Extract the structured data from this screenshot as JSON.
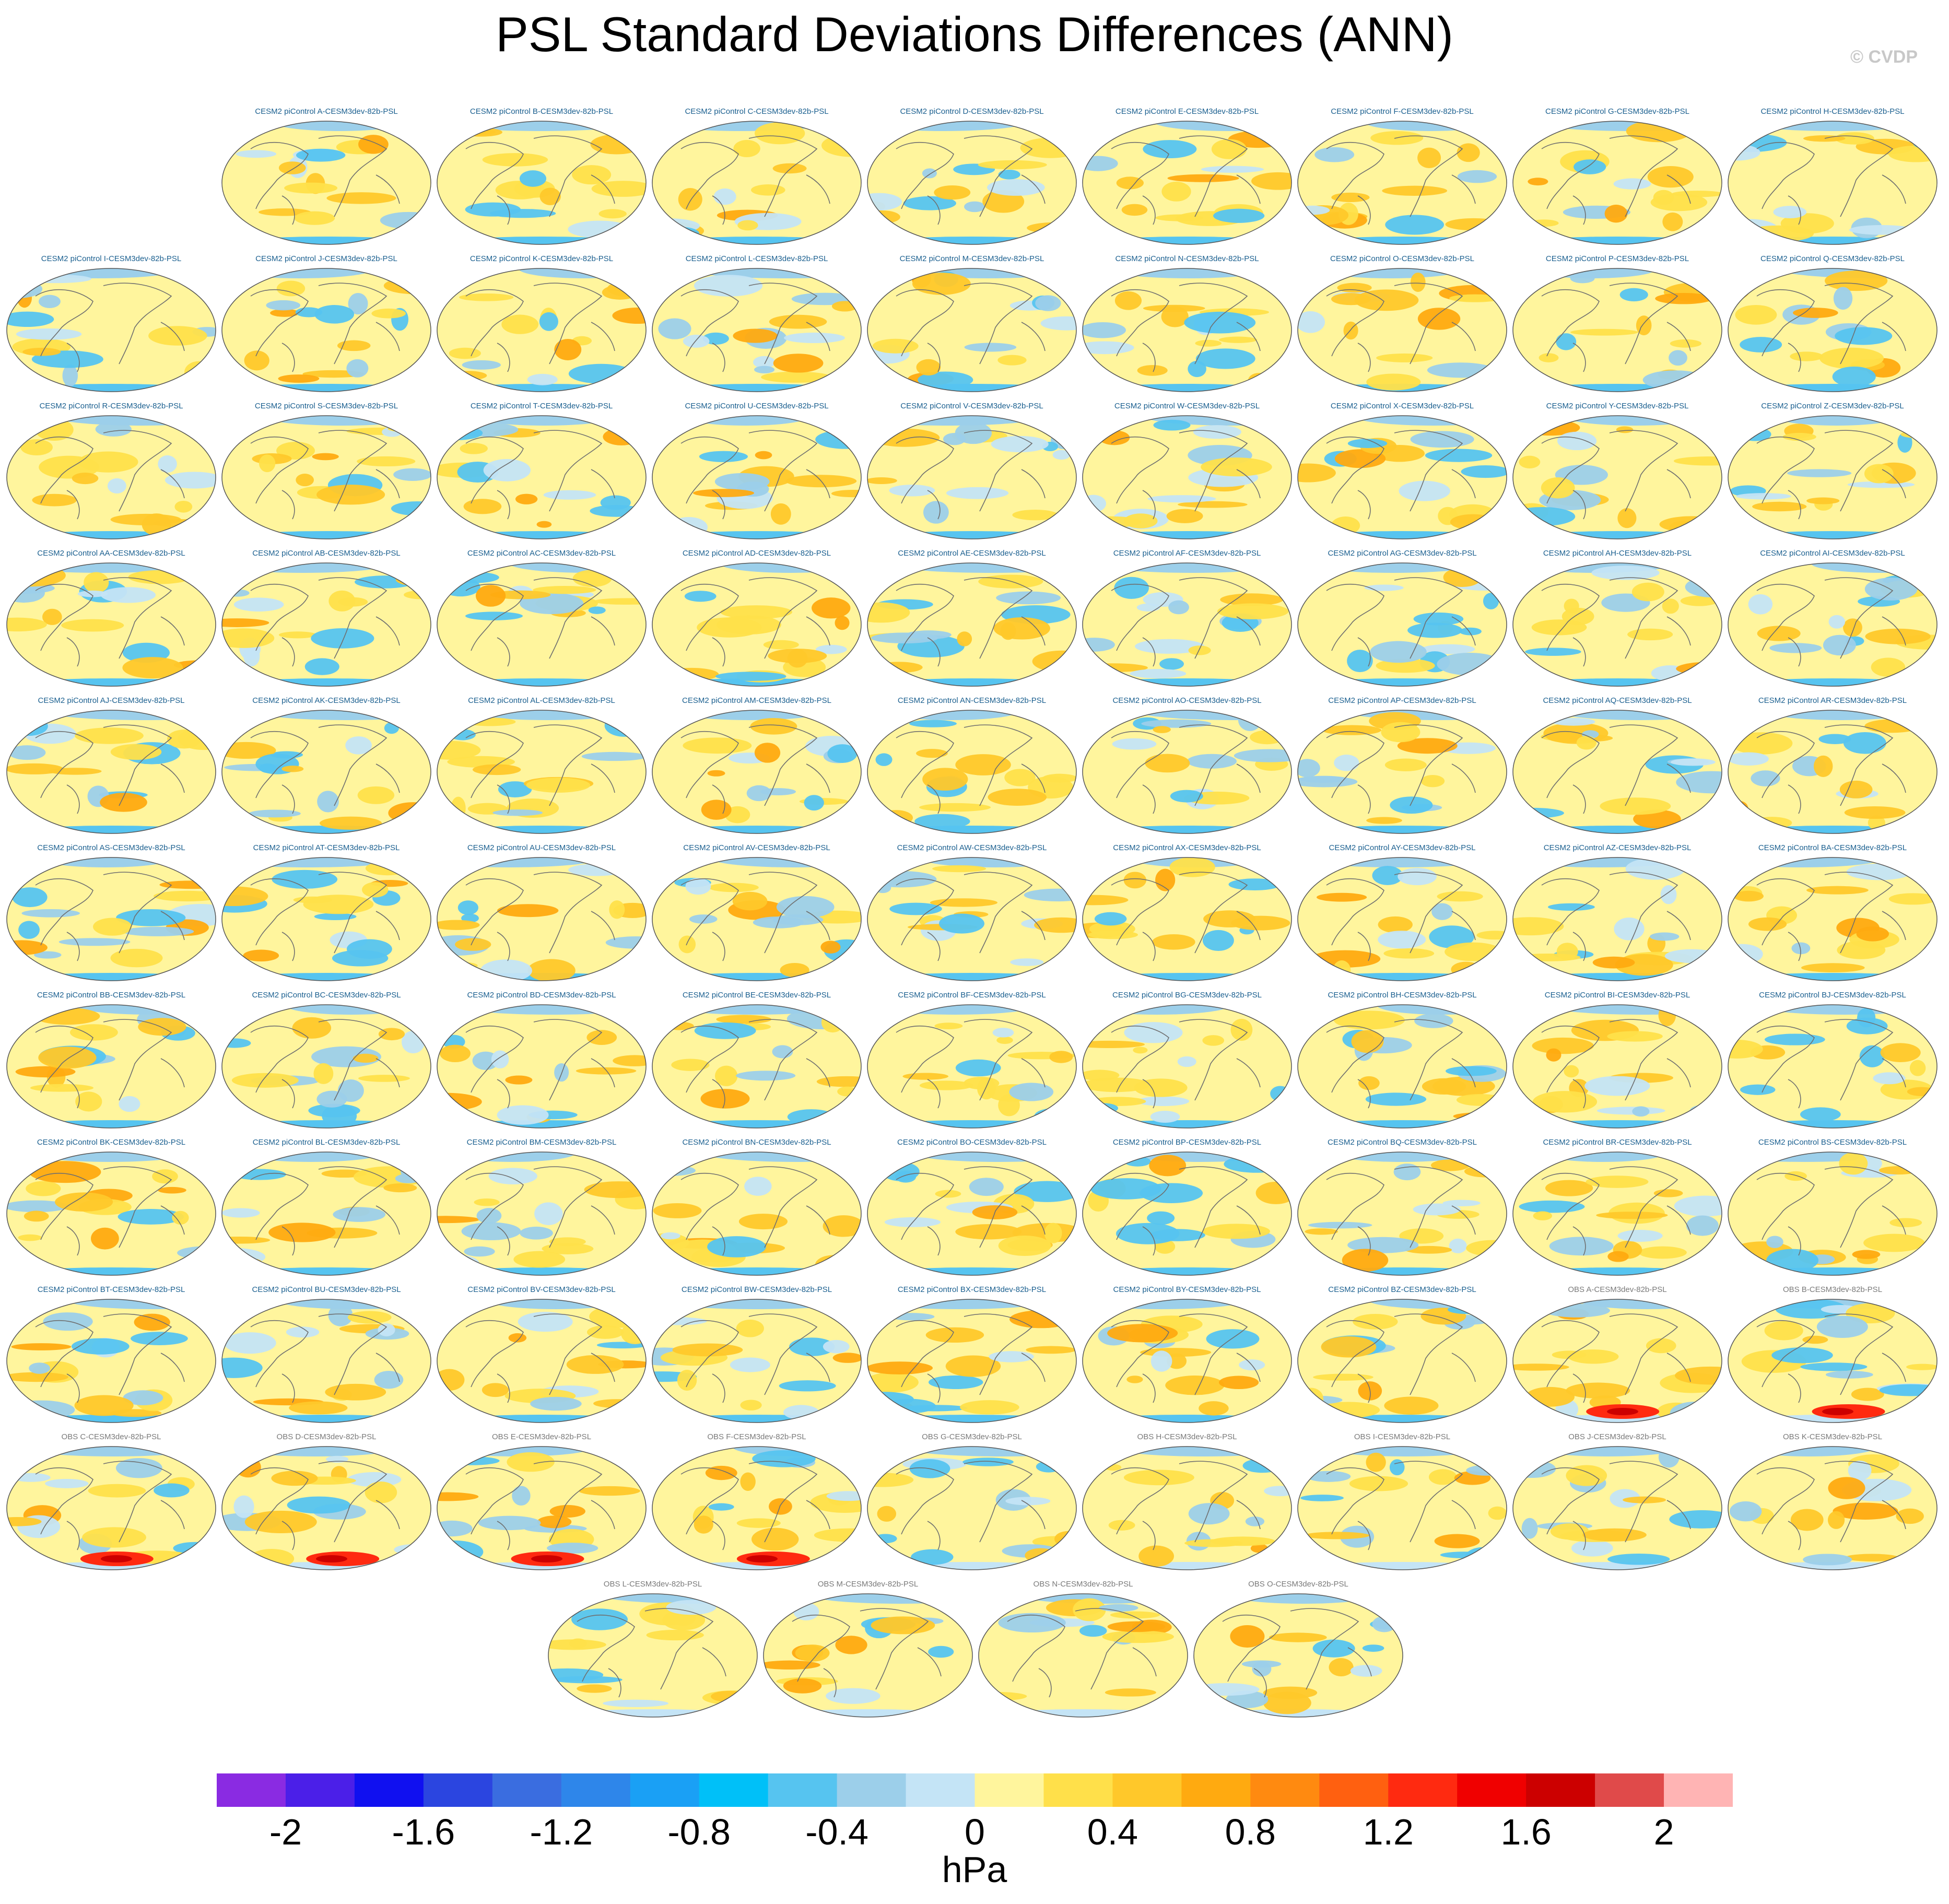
{
  "title": "PSL Standard Deviations Differences (ANN)",
  "credit": "© CVDP",
  "panels": [
    {
      "label": "CESM2 piControl A-CESM3dev-82b-PSL",
      "kind": "cesm"
    },
    {
      "label": "CESM2 piControl B-CESM3dev-82b-PSL",
      "kind": "cesm"
    },
    {
      "label": "CESM2 piControl C-CESM3dev-82b-PSL",
      "kind": "cesm"
    },
    {
      "label": "CESM2 piControl D-CESM3dev-82b-PSL",
      "kind": "cesm"
    },
    {
      "label": "CESM2 piControl E-CESM3dev-82b-PSL",
      "kind": "cesm"
    },
    {
      "label": "CESM2 piControl F-CESM3dev-82b-PSL",
      "kind": "cesm"
    },
    {
      "label": "CESM2 piControl G-CESM3dev-82b-PSL",
      "kind": "cesm"
    },
    {
      "label": "CESM2 piControl H-CESM3dev-82b-PSL",
      "kind": "cesm"
    },
    {
      "label": "CESM2 piControl I-CESM3dev-82b-PSL",
      "kind": "cesm"
    },
    {
      "label": "CESM2 piControl J-CESM3dev-82b-PSL",
      "kind": "cesm"
    },
    {
      "label": "CESM2 piControl K-CESM3dev-82b-PSL",
      "kind": "cesm"
    },
    {
      "label": "CESM2 piControl L-CESM3dev-82b-PSL",
      "kind": "cesm"
    },
    {
      "label": "CESM2 piControl M-CESM3dev-82b-PSL",
      "kind": "cesm"
    },
    {
      "label": "CESM2 piControl N-CESM3dev-82b-PSL",
      "kind": "cesm"
    },
    {
      "label": "CESM2 piControl O-CESM3dev-82b-PSL",
      "kind": "cesm"
    },
    {
      "label": "CESM2 piControl P-CESM3dev-82b-PSL",
      "kind": "cesm"
    },
    {
      "label": "CESM2 piControl Q-CESM3dev-82b-PSL",
      "kind": "cesm"
    },
    {
      "label": "CESM2 piControl R-CESM3dev-82b-PSL",
      "kind": "cesm"
    },
    {
      "label": "CESM2 piControl S-CESM3dev-82b-PSL",
      "kind": "cesm"
    },
    {
      "label": "CESM2 piControl T-CESM3dev-82b-PSL",
      "kind": "cesm"
    },
    {
      "label": "CESM2 piControl U-CESM3dev-82b-PSL",
      "kind": "cesm"
    },
    {
      "label": "CESM2 piControl V-CESM3dev-82b-PSL",
      "kind": "cesm"
    },
    {
      "label": "CESM2 piControl W-CESM3dev-82b-PSL",
      "kind": "cesm"
    },
    {
      "label": "CESM2 piControl X-CESM3dev-82b-PSL",
      "kind": "cesm"
    },
    {
      "label": "CESM2 piControl Y-CESM3dev-82b-PSL",
      "kind": "cesm"
    },
    {
      "label": "CESM2 piControl Z-CESM3dev-82b-PSL",
      "kind": "cesm"
    },
    {
      "label": "CESM2 piControl AA-CESM3dev-82b-PSL",
      "kind": "cesm"
    },
    {
      "label": "CESM2 piControl AB-CESM3dev-82b-PSL",
      "kind": "cesm"
    },
    {
      "label": "CESM2 piControl AC-CESM3dev-82b-PSL",
      "kind": "cesm"
    },
    {
      "label": "CESM2 piControl AD-CESM3dev-82b-PSL",
      "kind": "cesm"
    },
    {
      "label": "CESM2 piControl AE-CESM3dev-82b-PSL",
      "kind": "cesm"
    },
    {
      "label": "CESM2 piControl AF-CESM3dev-82b-PSL",
      "kind": "cesm"
    },
    {
      "label": "CESM2 piControl AG-CESM3dev-82b-PSL",
      "kind": "cesm"
    },
    {
      "label": "CESM2 piControl AH-CESM3dev-82b-PSL",
      "kind": "cesm"
    },
    {
      "label": "CESM2 piControl AI-CESM3dev-82b-PSL",
      "kind": "cesm"
    },
    {
      "label": "CESM2 piControl AJ-CESM3dev-82b-PSL",
      "kind": "cesm"
    },
    {
      "label": "CESM2 piControl AK-CESM3dev-82b-PSL",
      "kind": "cesm"
    },
    {
      "label": "CESM2 piControl AL-CESM3dev-82b-PSL",
      "kind": "cesm"
    },
    {
      "label": "CESM2 piControl AM-CESM3dev-82b-PSL",
      "kind": "cesm"
    },
    {
      "label": "CESM2 piControl AN-CESM3dev-82b-PSL",
      "kind": "cesm"
    },
    {
      "label": "CESM2 piControl AO-CESM3dev-82b-PSL",
      "kind": "cesm"
    },
    {
      "label": "CESM2 piControl AP-CESM3dev-82b-PSL",
      "kind": "cesm"
    },
    {
      "label": "CESM2 piControl AQ-CESM3dev-82b-PSL",
      "kind": "cesm"
    },
    {
      "label": "CESM2 piControl AR-CESM3dev-82b-PSL",
      "kind": "cesm"
    },
    {
      "label": "CESM2 piControl AS-CESM3dev-82b-PSL",
      "kind": "cesm"
    },
    {
      "label": "CESM2 piControl AT-CESM3dev-82b-PSL",
      "kind": "cesm"
    },
    {
      "label": "CESM2 piControl AU-CESM3dev-82b-PSL",
      "kind": "cesm"
    },
    {
      "label": "CESM2 piControl AV-CESM3dev-82b-PSL",
      "kind": "cesm"
    },
    {
      "label": "CESM2 piControl AW-CESM3dev-82b-PSL",
      "kind": "cesm"
    },
    {
      "label": "CESM2 piControl AX-CESM3dev-82b-PSL",
      "kind": "cesm"
    },
    {
      "label": "CESM2 piControl AY-CESM3dev-82b-PSL",
      "kind": "cesm"
    },
    {
      "label": "CESM2 piControl AZ-CESM3dev-82b-PSL",
      "kind": "cesm"
    },
    {
      "label": "CESM2 piControl BA-CESM3dev-82b-PSL",
      "kind": "cesm"
    },
    {
      "label": "CESM2 piControl BB-CESM3dev-82b-PSL",
      "kind": "cesm"
    },
    {
      "label": "CESM2 piControl BC-CESM3dev-82b-PSL",
      "kind": "cesm"
    },
    {
      "label": "CESM2 piControl BD-CESM3dev-82b-PSL",
      "kind": "cesm"
    },
    {
      "label": "CESM2 piControl BE-CESM3dev-82b-PSL",
      "kind": "cesm"
    },
    {
      "label": "CESM2 piControl BF-CESM3dev-82b-PSL",
      "kind": "cesm"
    },
    {
      "label": "CESM2 piControl BG-CESM3dev-82b-PSL",
      "kind": "cesm"
    },
    {
      "label": "CESM2 piControl BH-CESM3dev-82b-PSL",
      "kind": "cesm"
    },
    {
      "label": "CESM2 piControl BI-CESM3dev-82b-PSL",
      "kind": "cesm"
    },
    {
      "label": "CESM2 piControl BJ-CESM3dev-82b-PSL",
      "kind": "cesm"
    },
    {
      "label": "CESM2 piControl BK-CESM3dev-82b-PSL",
      "kind": "cesm"
    },
    {
      "label": "CESM2 piControl BL-CESM3dev-82b-PSL",
      "kind": "cesm"
    },
    {
      "label": "CESM2 piControl BM-CESM3dev-82b-PSL",
      "kind": "cesm"
    },
    {
      "label": "CESM2 piControl BN-CESM3dev-82b-PSL",
      "kind": "cesm"
    },
    {
      "label": "CESM2 piControl BO-CESM3dev-82b-PSL",
      "kind": "cesm"
    },
    {
      "label": "CESM2 piControl BP-CESM3dev-82b-PSL",
      "kind": "cesm"
    },
    {
      "label": "CESM2 piControl BQ-CESM3dev-82b-PSL",
      "kind": "cesm"
    },
    {
      "label": "CESM2 piControl BR-CESM3dev-82b-PSL",
      "kind": "cesm"
    },
    {
      "label": "CESM2 piControl BS-CESM3dev-82b-PSL",
      "kind": "cesm"
    },
    {
      "label": "CESM2 piControl BT-CESM3dev-82b-PSL",
      "kind": "cesm"
    },
    {
      "label": "CESM2 piControl BU-CESM3dev-82b-PSL",
      "kind": "cesm"
    },
    {
      "label": "CESM2 piControl BV-CESM3dev-82b-PSL",
      "kind": "cesm"
    },
    {
      "label": "CESM2 piControl BW-CESM3dev-82b-PSL",
      "kind": "cesm"
    },
    {
      "label": "CESM2 piControl BX-CESM3dev-82b-PSL",
      "kind": "cesm"
    },
    {
      "label": "CESM2 piControl BY-CESM3dev-82b-PSL",
      "kind": "cesm"
    },
    {
      "label": "CESM2 piControl BZ-CESM3dev-82b-PSL",
      "kind": "cesm"
    },
    {
      "label": "OBS A-CESM3dev-82b-PSL",
      "kind": "obs"
    },
    {
      "label": "OBS B-CESM3dev-82b-PSL",
      "kind": "obs"
    },
    {
      "label": "OBS C-CESM3dev-82b-PSL",
      "kind": "obs"
    },
    {
      "label": "OBS D-CESM3dev-82b-PSL",
      "kind": "obs"
    },
    {
      "label": "OBS E-CESM3dev-82b-PSL",
      "kind": "obs"
    },
    {
      "label": "OBS F-CESM3dev-82b-PSL",
      "kind": "obs"
    },
    {
      "label": "OBS G-CESM3dev-82b-PSL",
      "kind": "obs"
    },
    {
      "label": "OBS H-CESM3dev-82b-PSL",
      "kind": "obs"
    },
    {
      "label": "OBS I-CESM3dev-82b-PSL",
      "kind": "obs"
    },
    {
      "label": "OBS J-CESM3dev-82b-PSL",
      "kind": "obs"
    },
    {
      "label": "OBS K-CESM3dev-82b-PSL",
      "kind": "obs"
    },
    {
      "label": "OBS L-CESM3dev-82b-PSL",
      "kind": "obs"
    },
    {
      "label": "OBS M-CESM3dev-82b-PSL",
      "kind": "obs"
    },
    {
      "label": "OBS N-CESM3dev-82b-PSL",
      "kind": "obs"
    },
    {
      "label": "OBS O-CESM3dev-82b-PSL",
      "kind": "obs"
    }
  ],
  "colorbar": {
    "colors": [
      "#8a2be2",
      "#4b1fe8",
      "#1010f0",
      "#2b45e0",
      "#3a6de0",
      "#2e86ea",
      "#1aa0f5",
      "#00c0f8",
      "#56c4f0",
      "#9ccfea",
      "#c4e4f6",
      "#fff59d",
      "#ffe04a",
      "#ffc82a",
      "#ffaa10",
      "#ff8a10",
      "#ff6010",
      "#ff2a10",
      "#f00000",
      "#cc0000",
      "#e04a4a",
      "#ffb4b4"
    ],
    "tick_labels": [
      "-2",
      "-1.6",
      "-1.2",
      "-0.8",
      "-0.4",
      "0",
      "0.4",
      "0.8",
      "1.2",
      "1.6",
      "2"
    ],
    "units": "hPa"
  }
}
